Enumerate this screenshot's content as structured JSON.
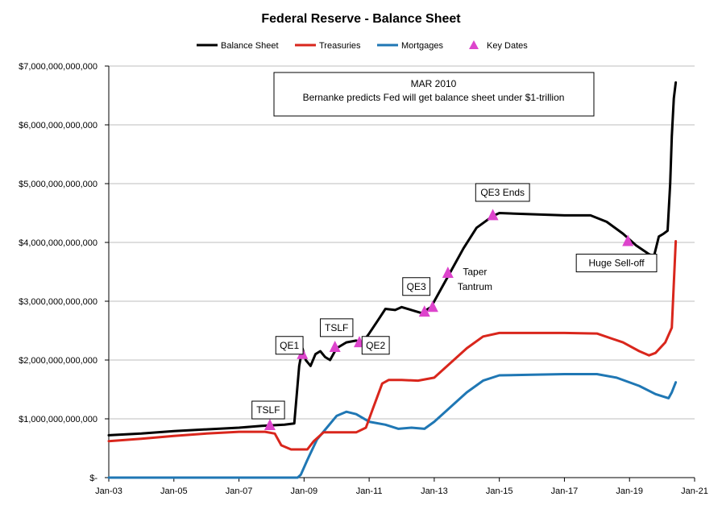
{
  "chart_data": {
    "type": "line",
    "title": "Federal Reserve - Balance Sheet",
    "xlabel": "",
    "ylabel": "",
    "x_ticks": [
      "Jan-03",
      "Jan-05",
      "Jan-07",
      "Jan-09",
      "Jan-11",
      "Jan-13",
      "Jan-15",
      "Jan-17",
      "Jan-19",
      "Jan-21"
    ],
    "xlim": [
      2003.0,
      2021.0
    ],
    "y_ticks": [
      "$-",
      "$1,000,000,000,000",
      "$2,000,000,000,000",
      "$3,000,000,000,000",
      "$4,000,000,000,000",
      "$5,000,000,000,000",
      "$6,000,000,000,000",
      "$7,000,000,000,000"
    ],
    "ylim": [
      0,
      7000000000000
    ],
    "grid": "horizontal",
    "legend_position": "top",
    "series": [
      {
        "name": "Balance Sheet",
        "color": "#000000",
        "points": [
          [
            2003.0,
            720000000000
          ],
          [
            2004.0,
            750000000000
          ],
          [
            2005.0,
            790000000000
          ],
          [
            2006.0,
            820000000000
          ],
          [
            2007.0,
            850000000000
          ],
          [
            2007.7,
            880000000000
          ],
          [
            2008.4,
            900000000000
          ],
          [
            2008.7,
            920000000000
          ],
          [
            2008.85,
            1900000000000
          ],
          [
            2008.95,
            2200000000000
          ],
          [
            2009.05,
            2000000000000
          ],
          [
            2009.2,
            1900000000000
          ],
          [
            2009.35,
            2100000000000
          ],
          [
            2009.5,
            2150000000000
          ],
          [
            2009.65,
            2050000000000
          ],
          [
            2009.8,
            2000000000000
          ],
          [
            2010.0,
            2200000000000
          ],
          [
            2010.3,
            2300000000000
          ],
          [
            2010.6,
            2330000000000
          ],
          [
            2010.8,
            2300000000000
          ],
          [
            2011.0,
            2450000000000
          ],
          [
            2011.3,
            2700000000000
          ],
          [
            2011.5,
            2870000000000
          ],
          [
            2011.8,
            2850000000000
          ],
          [
            2012.0,
            2900000000000
          ],
          [
            2012.3,
            2850000000000
          ],
          [
            2012.6,
            2800000000000
          ],
          [
            2012.9,
            2900000000000
          ],
          [
            2013.2,
            3200000000000
          ],
          [
            2013.5,
            3500000000000
          ],
          [
            2013.9,
            3900000000000
          ],
          [
            2014.3,
            4250000000000
          ],
          [
            2014.8,
            4450000000000
          ],
          [
            2015.0,
            4500000000000
          ],
          [
            2016.0,
            4480000000000
          ],
          [
            2017.0,
            4460000000000
          ],
          [
            2017.8,
            4460000000000
          ],
          [
            2018.3,
            4350000000000
          ],
          [
            2018.8,
            4150000000000
          ],
          [
            2019.2,
            3950000000000
          ],
          [
            2019.6,
            3800000000000
          ],
          [
            2019.75,
            3760000000000
          ],
          [
            2019.9,
            4100000000000
          ],
          [
            2020.05,
            4150000000000
          ],
          [
            2020.17,
            4200000000000
          ],
          [
            2020.25,
            5000000000000
          ],
          [
            2020.3,
            5800000000000
          ],
          [
            2020.36,
            6450000000000
          ],
          [
            2020.42,
            6720000000000
          ]
        ]
      },
      {
        "name": "Treasuries",
        "color": "#d9261c",
        "points": [
          [
            2003.0,
            620000000000
          ],
          [
            2004.0,
            660000000000
          ],
          [
            2005.0,
            710000000000
          ],
          [
            2006.0,
            750000000000
          ],
          [
            2007.0,
            780000000000
          ],
          [
            2007.8,
            780000000000
          ],
          [
            2008.1,
            750000000000
          ],
          [
            2008.3,
            550000000000
          ],
          [
            2008.6,
            480000000000
          ],
          [
            2009.1,
            480000000000
          ],
          [
            2009.3,
            620000000000
          ],
          [
            2009.6,
            770000000000
          ],
          [
            2010.0,
            770000000000
          ],
          [
            2010.6,
            770000000000
          ],
          [
            2010.9,
            850000000000
          ],
          [
            2011.1,
            1150000000000
          ],
          [
            2011.4,
            1600000000000
          ],
          [
            2011.6,
            1660000000000
          ],
          [
            2012.0,
            1660000000000
          ],
          [
            2012.5,
            1650000000000
          ],
          [
            2013.0,
            1700000000000
          ],
          [
            2013.5,
            1950000000000
          ],
          [
            2014.0,
            2200000000000
          ],
          [
            2014.5,
            2400000000000
          ],
          [
            2015.0,
            2460000000000
          ],
          [
            2017.0,
            2460000000000
          ],
          [
            2018.0,
            2450000000000
          ],
          [
            2018.8,
            2300000000000
          ],
          [
            2019.3,
            2150000000000
          ],
          [
            2019.6,
            2080000000000
          ],
          [
            2019.8,
            2120000000000
          ],
          [
            2020.1,
            2300000000000
          ],
          [
            2020.3,
            2550000000000
          ],
          [
            2020.42,
            4020000000000
          ]
        ]
      },
      {
        "name": "Mortgages",
        "color": "#1f77b4",
        "points": [
          [
            2003.0,
            0
          ],
          [
            2008.8,
            0
          ],
          [
            2008.9,
            50000000000
          ],
          [
            2009.1,
            300000000000
          ],
          [
            2009.4,
            650000000000
          ],
          [
            2009.7,
            850000000000
          ],
          [
            2010.0,
            1050000000000
          ],
          [
            2010.3,
            1120000000000
          ],
          [
            2010.6,
            1080000000000
          ],
          [
            2011.0,
            950000000000
          ],
          [
            2011.5,
            900000000000
          ],
          [
            2011.9,
            830000000000
          ],
          [
            2012.3,
            850000000000
          ],
          [
            2012.7,
            830000000000
          ],
          [
            2013.0,
            950000000000
          ],
          [
            2013.5,
            1200000000000
          ],
          [
            2014.0,
            1450000000000
          ],
          [
            2014.5,
            1650000000000
          ],
          [
            2015.0,
            1740000000000
          ],
          [
            2016.0,
            1750000000000
          ],
          [
            2017.0,
            1760000000000
          ],
          [
            2018.0,
            1760000000000
          ],
          [
            2018.6,
            1700000000000
          ],
          [
            2019.3,
            1560000000000
          ],
          [
            2019.8,
            1420000000000
          ],
          [
            2020.2,
            1350000000000
          ],
          [
            2020.3,
            1450000000000
          ],
          [
            2020.42,
            1620000000000
          ]
        ]
      }
    ],
    "key_dates": {
      "name": "Key Dates",
      "color": "#dd44cc",
      "points": [
        [
          2007.95,
          890000000000
        ],
        [
          2008.95,
          2100000000000
        ],
        [
          2009.95,
          2220000000000
        ],
        [
          2010.7,
          2300000000000
        ],
        [
          2012.7,
          2820000000000
        ],
        [
          2012.95,
          2900000000000
        ],
        [
          2013.42,
          3480000000000
        ],
        [
          2014.8,
          4460000000000
        ],
        [
          2018.95,
          4020000000000
        ]
      ]
    },
    "annotations": [
      {
        "text": "TSLF",
        "x": 2007.9,
        "y": 1150000000000,
        "boxed": true
      },
      {
        "text": "QE1",
        "x": 2008.55,
        "y": 2250000000000,
        "boxed": true
      },
      {
        "text": "TSLF",
        "x": 2010.0,
        "y": 2550000000000,
        "boxed": true
      },
      {
        "text": "QE2",
        "x": 2011.2,
        "y": 2250000000000,
        "boxed": true
      },
      {
        "text": "QE3",
        "x": 2012.45,
        "y": 3250000000000,
        "boxed": true
      },
      {
        "text": "Taper",
        "x": 2014.25,
        "y": 3500000000000,
        "boxed": false
      },
      {
        "text": "Tantrum",
        "x": 2014.25,
        "y": 3250000000000,
        "boxed": false
      },
      {
        "text": "QE3 Ends",
        "x": 2015.1,
        "y": 4850000000000,
        "boxed": true
      },
      {
        "text": "Huge Sell-off",
        "x": 2018.6,
        "y": 3650000000000,
        "boxed": true
      }
    ],
    "callout": {
      "line1": "MAR 2010",
      "line2": "Bernanke predicts Fed will get balance sheet under $1-trillion"
    }
  }
}
